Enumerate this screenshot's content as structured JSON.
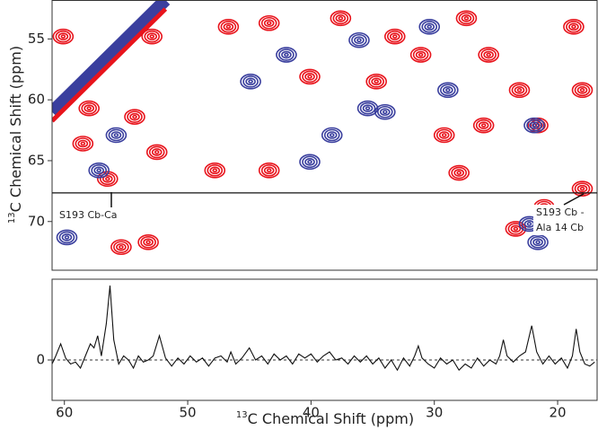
{
  "chart_data": [
    {
      "type": "contour",
      "y_label": {
        "sup": "13",
        "text": "C Chemical Shift (ppm)"
      },
      "xlim": [
        61,
        16.8
      ],
      "ylim": [
        51.8,
        74
      ],
      "yticks": [
        55,
        60,
        65,
        70
      ],
      "slice_ppm": 67.65,
      "annotations": [
        "S193 Cb-Ca",
        "S193 Cb -",
        "Ala 14 Cb"
      ],
      "series": [
        {
          "color": "#e8141c",
          "x": [
            52.9,
            60.1,
            54.3,
            58,
            46.7,
            43.4,
            37.6,
            33.2,
            34.7,
            31.1,
            27.4,
            25.6,
            23.1,
            21.6,
            18.7,
            18,
            26,
            56.5,
            52.5,
            47.8,
            43.4,
            55.4,
            53.2,
            40.1,
            29.2,
            23.4,
            21.1,
            28,
            18,
            58.5
          ],
          "values": [
            54.8,
            54.8,
            61.4,
            60.7,
            54,
            53.7,
            53.3,
            54.8,
            58.5,
            56.3,
            53.3,
            56.3,
            59.2,
            62.1,
            54,
            59.2,
            62.1,
            66.5,
            64.3,
            65.8,
            65.8,
            72.1,
            71.7,
            58.1,
            62.9,
            70.6,
            68.8,
            66,
            67.3,
            63.6
          ]
        },
        {
          "color": "#3a3f9e",
          "x": [
            42,
            36.1,
            30.4,
            28.9,
            35.4,
            57.2,
            59.8,
            22.3,
            21.6,
            40.1,
            44.9,
            21.9,
            34,
            38.3,
            55.8
          ],
          "values": [
            56.3,
            55.1,
            54,
            59.2,
            60.7,
            65.8,
            71.3,
            70.2,
            71.7,
            65.1,
            58.5,
            62.1,
            61,
            62.9,
            62.9
          ]
        }
      ]
    },
    {
      "type": "line",
      "x_label": {
        "sup": "13",
        "text": "C Chemical Shift (ppm)"
      },
      "xlim": [
        61,
        16.8
      ],
      "ylim": [
        -1,
        2
      ],
      "yticks": [
        0
      ],
      "xticks": [
        60,
        50,
        40,
        30,
        20
      ],
      "color": "#111111",
      "x": [
        61,
        60.7,
        60.3,
        59.9,
        59.5,
        59.1,
        58.7,
        58.3,
        57.9,
        57.6,
        57.3,
        57.0,
        56.6,
        56.3,
        56.0,
        55.6,
        55.2,
        54.8,
        54.4,
        54.0,
        53.6,
        53.2,
        52.8,
        52.3,
        51.8,
        51.3,
        50.8,
        50.3,
        49.8,
        49.3,
        48.8,
        48.3,
        47.8,
        47.3,
        46.8,
        46.5,
        46.1,
        45.6,
        45.0,
        44.5,
        44.0,
        43.5,
        43.0,
        42.5,
        42.0,
        41.5,
        41.0,
        40.5,
        40.0,
        39.5,
        39.0,
        38.5,
        38.0,
        37.5,
        37.0,
        36.5,
        36.0,
        35.5,
        35.0,
        34.5,
        34.0,
        33.5,
        33.0,
        32.5,
        32.0,
        31.6,
        31.3,
        31.0,
        30.5,
        30.0,
        29.5,
        29.0,
        28.5,
        28.0,
        27.5,
        27.0,
        26.5,
        26.0,
        25.5,
        25.0,
        24.7,
        24.4,
        24.1,
        23.6,
        23.1,
        22.6,
        22.1,
        21.7,
        21.2,
        20.7,
        20.2,
        19.7,
        19.2,
        18.8,
        18.5,
        18.2,
        17.8,
        17.4,
        17.0
      ],
      "values": [
        -0.1,
        0.1,
        0.4,
        0.05,
        -0.1,
        -0.05,
        -0.2,
        0.1,
        0.4,
        0.3,
        0.6,
        0.1,
        0.9,
        1.84,
        0.5,
        -0.1,
        0.1,
        0,
        -0.2,
        0.1,
        -0.05,
        0,
        0.1,
        0.6,
        0.05,
        -0.15,
        0.05,
        -0.1,
        0.1,
        -0.05,
        0.05,
        -0.15,
        0.05,
        0.1,
        -0.05,
        0.2,
        -0.1,
        0.05,
        0.3,
        0,
        0.1,
        -0.1,
        0.15,
        0,
        0.1,
        -0.1,
        0.15,
        0.05,
        0.15,
        -0.05,
        0.1,
        0.2,
        0,
        0.05,
        -0.1,
        0.1,
        -0.05,
        0.1,
        -0.1,
        0.05,
        -0.2,
        0,
        -0.25,
        0.05,
        -0.15,
        0.1,
        0.35,
        0.05,
        -0.1,
        -0.2,
        0.05,
        -0.1,
        0,
        -0.25,
        -0.1,
        -0.2,
        0.05,
        -0.15,
        0,
        -0.1,
        0.1,
        0.5,
        0.1,
        -0.05,
        0.1,
        0.2,
        0.85,
        0.2,
        -0.1,
        0.1,
        -0.1,
        0.05,
        -0.2,
        0.1,
        0.77,
        0.2,
        -0.1,
        -0.15,
        -0.05
      ]
    }
  ]
}
